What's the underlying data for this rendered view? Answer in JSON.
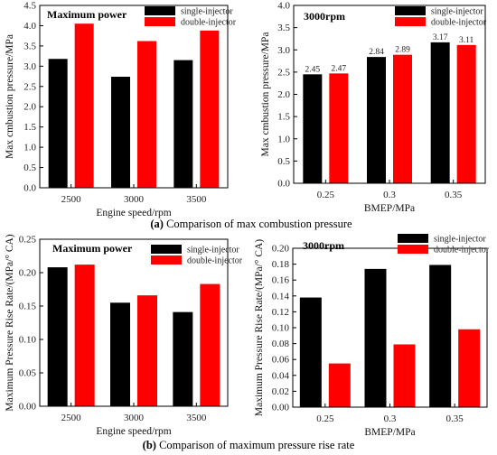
{
  "colors": {
    "single": "#000000",
    "double": "#ff0000"
  },
  "captions": {
    "a": {
      "letter": "(a)",
      "text": " Comparison of max combustion pressure"
    },
    "b": {
      "letter": "(b)",
      "text": " Comparison of maximum pressure rise rate"
    }
  },
  "chart_data": [
    {
      "type": "bar",
      "title": "Maximum power",
      "xlabel": "Engine speed/rpm",
      "ylabel": "Max cmbustion pressure/MPa",
      "categories": [
        "2500",
        "3000",
        "3500"
      ],
      "ylim": [
        0,
        4.5
      ],
      "yticks": [
        "0.0",
        "0.5",
        "1.0",
        "1.5",
        "2.0",
        "2.5",
        "3.0",
        "3.5",
        "4.0",
        "4.5"
      ],
      "legend": "top-right",
      "series": [
        {
          "name": "single-injector",
          "values": [
            3.18,
            2.74,
            3.15
          ]
        },
        {
          "name": "double-injector",
          "values": [
            4.05,
            3.62,
            3.88
          ]
        }
      ]
    },
    {
      "type": "bar",
      "title": "3000rpm",
      "xlabel": "BMEP/MPa",
      "ylabel": "Max cmbustion pressure/MPa",
      "categories": [
        "0.25",
        "0.3",
        "0.35"
      ],
      "ylim": [
        0,
        4.0
      ],
      "yticks": [
        "0.0",
        "0.5",
        "1.0",
        "1.5",
        "2.0",
        "2.5",
        "3.0",
        "3.5",
        "4.0"
      ],
      "legend": "top-right",
      "series": [
        {
          "name": "single-injector",
          "values": [
            2.45,
            2.84,
            3.17
          ],
          "labels": [
            "2.45",
            "2.84",
            "3.17"
          ]
        },
        {
          "name": "double-injector",
          "values": [
            2.47,
            2.89,
            3.11
          ],
          "labels": [
            "2.47",
            "2.89",
            "3.11"
          ]
        }
      ]
    },
    {
      "type": "bar",
      "title": "Maximum power",
      "xlabel": "Engine speed/rpm",
      "ylabel": "Maximum Pressure Rise Rate/(MPa/° CA)",
      "categories": [
        "2500",
        "3000",
        "3500"
      ],
      "ylim": [
        0,
        0.25
      ],
      "yticks": [
        "0.00",
        "0.05",
        "0.10",
        "0.15",
        "0.20",
        "0.25"
      ],
      "legend": "top-right",
      "series": [
        {
          "name": "single-injector",
          "values": [
            0.208,
            0.155,
            0.141
          ]
        },
        {
          "name": "double-injector",
          "values": [
            0.212,
            0.166,
            0.183
          ]
        }
      ]
    },
    {
      "type": "bar",
      "title": "3000rpm",
      "xlabel": "BMEP/MPa",
      "ylabel": "Maximum Pressure Rise Rate/(MPa/° CA)",
      "categories": [
        "0.25",
        "0.3",
        "0.35"
      ],
      "ylim": [
        0,
        0.2
      ],
      "yticks": [
        "0.00",
        "0.02",
        "0.04",
        "0.06",
        "0.08",
        "0.10",
        "0.12",
        "0.14",
        "0.16",
        "0.18",
        "0.20"
      ],
      "legend": "top-right",
      "series": [
        {
          "name": "single-injector",
          "values": [
            0.138,
            0.174,
            0.179
          ]
        },
        {
          "name": "double-injector",
          "values": [
            0.055,
            0.079,
            0.098
          ]
        }
      ]
    }
  ]
}
